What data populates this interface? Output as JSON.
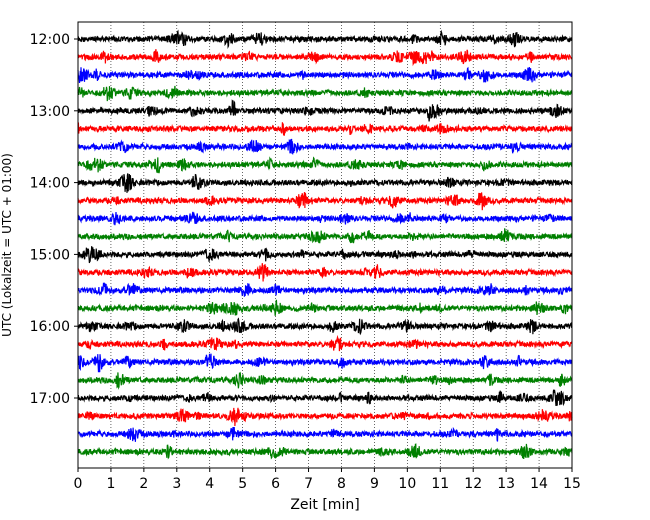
{
  "chart_data": {
    "type": "line",
    "title": "",
    "xlabel": "Zeit  [min]",
    "ylabel": "UTC (Lokalzeit = UTC + 01:00)",
    "xlim": [
      0,
      15
    ],
    "x_ticks": [
      "0",
      "1",
      "2",
      "3",
      "4",
      "5",
      "6",
      "7",
      "8",
      "9",
      "10",
      "11",
      "12",
      "13",
      "14",
      "15"
    ],
    "y_tick_labels": [
      "12:00",
      "13:00",
      "14:00",
      "15:00",
      "16:00",
      "17:00"
    ],
    "grid": "vertical-dotted",
    "trace_interval_minutes": 15,
    "traces": [
      {
        "start": "12:00",
        "color": "#000000"
      },
      {
        "start": "12:15",
        "color": "#ff0000"
      },
      {
        "start": "12:30",
        "color": "#0000ff"
      },
      {
        "start": "12:45",
        "color": "#008000"
      },
      {
        "start": "13:00",
        "color": "#000000"
      },
      {
        "start": "13:15",
        "color": "#ff0000"
      },
      {
        "start": "13:30",
        "color": "#0000ff"
      },
      {
        "start": "13:45",
        "color": "#008000"
      },
      {
        "start": "14:00",
        "color": "#000000"
      },
      {
        "start": "14:15",
        "color": "#ff0000"
      },
      {
        "start": "14:30",
        "color": "#0000ff"
      },
      {
        "start": "14:45",
        "color": "#008000"
      },
      {
        "start": "15:00",
        "color": "#000000"
      },
      {
        "start": "15:15",
        "color": "#ff0000"
      },
      {
        "start": "15:30",
        "color": "#0000ff"
      },
      {
        "start": "15:45",
        "color": "#008000"
      },
      {
        "start": "16:00",
        "color": "#000000"
      },
      {
        "start": "16:15",
        "color": "#ff0000"
      },
      {
        "start": "16:30",
        "color": "#0000ff"
      },
      {
        "start": "16:45",
        "color": "#008000"
      },
      {
        "start": "17:00",
        "color": "#000000"
      },
      {
        "start": "17:15",
        "color": "#ff0000"
      },
      {
        "start": "17:30",
        "color": "#0000ff"
      },
      {
        "start": "17:45",
        "color": "#008000"
      }
    ]
  }
}
